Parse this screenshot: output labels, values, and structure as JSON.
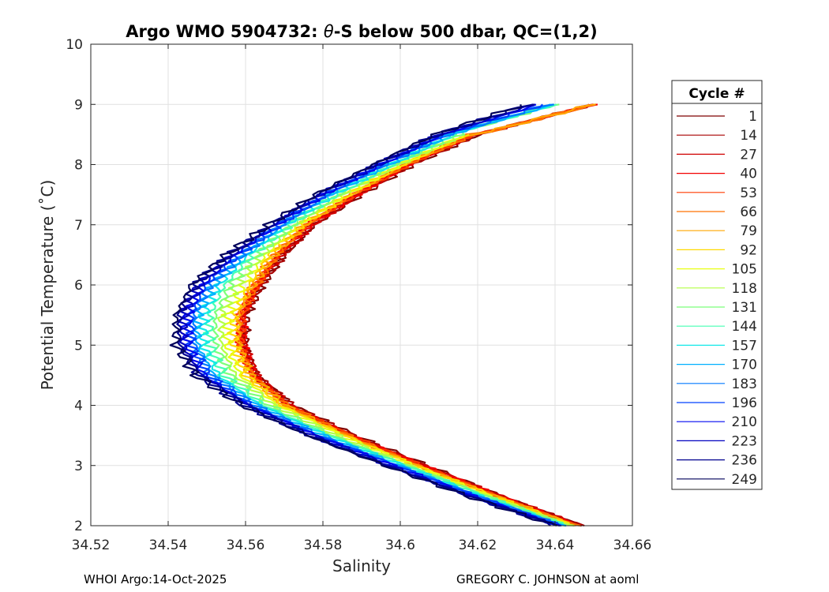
{
  "chart_data": {
    "type": "line",
    "title_prefix": "Argo WMO 5904732: ",
    "title_theta": "θ",
    "title_suffix": "-S below 500 dbar,  QC=(1,2)",
    "xlabel": "Salinity",
    "ylabel": "Potential Temperature (˚C)",
    "xlim": [
      34.52,
      34.66
    ],
    "ylim": [
      2,
      10
    ],
    "xticks": [
      34.52,
      34.54,
      34.56,
      34.58,
      34.6,
      34.62,
      34.64,
      34.66
    ],
    "xtick_labels": [
      "34.52",
      "34.54",
      "34.56",
      "34.58",
      "34.6",
      "34.62",
      "34.64",
      "34.66"
    ],
    "yticks": [
      2,
      3,
      4,
      5,
      6,
      7,
      8,
      9,
      10
    ],
    "ytick_labels": [
      "2",
      "3",
      "4",
      "5",
      "6",
      "7",
      "8",
      "9",
      "10"
    ],
    "grid": true,
    "legend": {
      "title": "Cycle #",
      "placement": "outside-right",
      "entries": [
        "1",
        "14",
        "27",
        "40",
        "53",
        "66",
        "79",
        "92",
        "105",
        "118",
        "131",
        "144",
        "157",
        "170",
        "183",
        "196",
        "210",
        "223",
        "236",
        "249"
      ],
      "colors": [
        "#7f0000",
        "#a80000",
        "#d00000",
        "#f20000",
        "#ff3a00",
        "#ff7000",
        "#ffa600",
        "#ffd900",
        "#e8ff12",
        "#b2ff45",
        "#7cff7a",
        "#45ffb2",
        "#12e8e8",
        "#00b0ff",
        "#0078ff",
        "#0040ff",
        "#0008f0",
        "#0000c0",
        "#000090",
        "#00005a"
      ]
    },
    "series_profiles": [
      {
        "color_group": "early cycles (1-60, red/orange)",
        "temperature": [
          2.0,
          2.5,
          3.0,
          3.5,
          4.0,
          4.5,
          5.0,
          5.5,
          6.0,
          6.5,
          7.0,
          7.5,
          8.0,
          8.5,
          9.0
        ],
        "salinity": [
          34.647,
          34.626,
          34.607,
          34.588,
          34.572,
          34.563,
          34.56,
          34.56,
          34.564,
          34.57,
          34.578,
          34.59,
          34.603,
          34.62,
          34.65
        ]
      },
      {
        "color_group": "mid cycles (80-150, yellow/green)",
        "temperature": [
          2.0,
          2.5,
          3.0,
          3.5,
          4.0,
          4.5,
          5.0,
          5.5,
          6.0,
          6.5,
          7.0,
          7.5,
          8.0,
          8.5
        ],
        "salinity": [
          34.645,
          34.624,
          34.604,
          34.586,
          34.57,
          34.561,
          34.558,
          34.558,
          34.562,
          34.567,
          34.575,
          34.587,
          34.601,
          34.618
        ]
      },
      {
        "color_group": "late cycles (160-200, cyan/blue)",
        "temperature": [
          2.0,
          2.5,
          3.0,
          3.5,
          4.0,
          4.5,
          5.0,
          5.5,
          6.0,
          6.5,
          7.0,
          7.5,
          8.0,
          8.5,
          9.0
        ],
        "salinity": [
          34.642,
          34.62,
          34.6,
          34.58,
          34.563,
          34.552,
          34.548,
          34.548,
          34.552,
          34.56,
          34.57,
          34.582,
          34.597,
          34.613,
          34.64
        ]
      },
      {
        "color_group": "latest cycles (210-249, dark blue/navy)",
        "temperature": [
          2.0,
          2.5,
          3.0,
          3.5,
          4.0,
          4.5,
          5.0,
          5.5,
          6.0,
          6.5,
          7.0,
          7.5,
          8.0,
          8.5,
          9.0
        ],
        "salinity": [
          34.64,
          34.617,
          34.596,
          34.576,
          34.559,
          34.547,
          34.542,
          34.542,
          34.546,
          34.555,
          34.566,
          34.578,
          34.593,
          34.609,
          34.632
        ]
      }
    ]
  },
  "footer": {
    "left": "WHOI Argo:14-Oct-2025",
    "right": "GREGORY C. JOHNSON at aoml"
  }
}
